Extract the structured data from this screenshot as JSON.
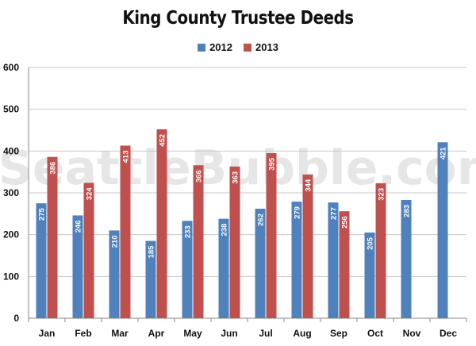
{
  "watermark": "SeattleBubble.com",
  "chart_data": {
    "type": "bar",
    "title": "King County Trustee Deeds",
    "categories": [
      "Jan",
      "Feb",
      "Mar",
      "Apr",
      "May",
      "Jun",
      "Jul",
      "Aug",
      "Sep",
      "Oct",
      "Nov",
      "Dec"
    ],
    "series": [
      {
        "name": "2012",
        "color": "#4f81bd",
        "values": [
          275,
          246,
          210,
          185,
          233,
          238,
          262,
          279,
          277,
          205,
          283,
          421
        ]
      },
      {
        "name": "2013",
        "color": "#c0504d",
        "values": [
          386,
          324,
          413,
          452,
          366,
          363,
          395,
          344,
          256,
          323,
          null,
          null
        ]
      }
    ],
    "ylim": [
      0,
      600
    ],
    "yticks": [
      0,
      100,
      200,
      300,
      400,
      500,
      600
    ],
    "grid": true,
    "legend_position": "top-center",
    "data_labels": true
  }
}
